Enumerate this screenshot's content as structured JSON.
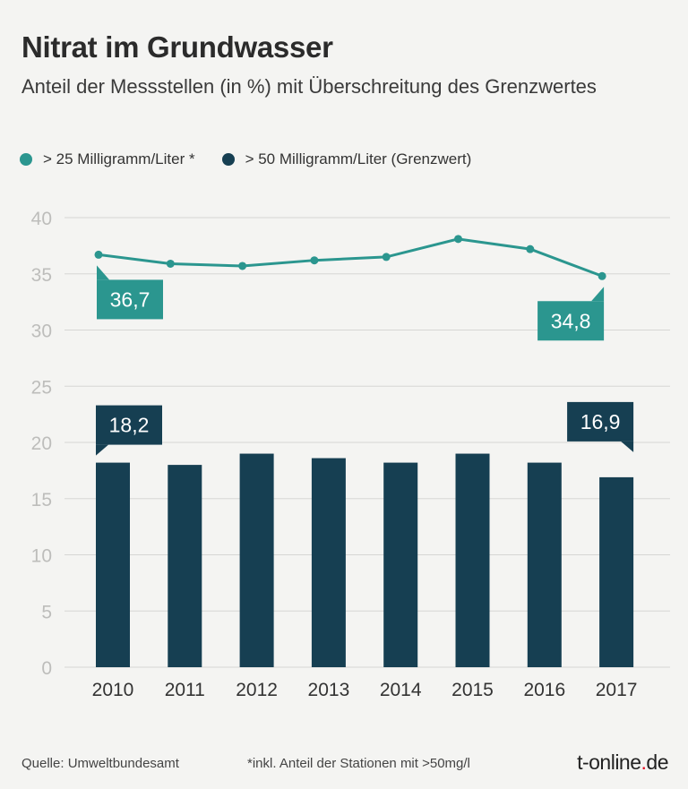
{
  "title": "Nitrat im Grundwasser",
  "subtitle": "Anteil der Messstellen (in %) mit Überschreitung des Grenzwertes",
  "legend": [
    {
      "label": "> 25 Milligramm/Liter *",
      "color": "#2b968f"
    },
    {
      "label": "> 50 Milligramm/Liter (Grenzwert)",
      "color": "#163f52"
    }
  ],
  "footer": {
    "source": "Quelle: Umweltbundesamt",
    "note": "*inkl. Anteil der Stationen mit >50mg/l",
    "brand_main": "t-online",
    "brand_dot": ".",
    "brand_tld": "de"
  },
  "chart_data": {
    "type": "bar",
    "categories": [
      "2010",
      "2011",
      "2012",
      "2013",
      "2014",
      "2015",
      "2016",
      "2017"
    ],
    "series": [
      {
        "name": "> 25 Milligramm/Liter *",
        "kind": "line",
        "color": "#2b968f",
        "values": [
          36.7,
          35.9,
          35.7,
          36.2,
          36.5,
          38.1,
          37.2,
          34.8
        ]
      },
      {
        "name": "> 50 Milligramm/Liter (Grenzwert)",
        "kind": "bar",
        "color": "#163f52",
        "values": [
          18.2,
          18.0,
          19.0,
          18.6,
          18.2,
          19.0,
          18.2,
          16.9
        ]
      }
    ],
    "callouts": [
      {
        "series": 0,
        "index": 0,
        "text": "36,7"
      },
      {
        "series": 0,
        "index": 7,
        "text": "34,8"
      },
      {
        "series": 1,
        "index": 0,
        "text": "18,2"
      },
      {
        "series": 1,
        "index": 7,
        "text": "16,9"
      }
    ],
    "yticks": [
      "0",
      "5",
      "10",
      "15",
      "20",
      "25",
      "30",
      "35",
      "40"
    ],
    "ylim": [
      0,
      40
    ],
    "grid": true,
    "legend_position": "top-left"
  }
}
